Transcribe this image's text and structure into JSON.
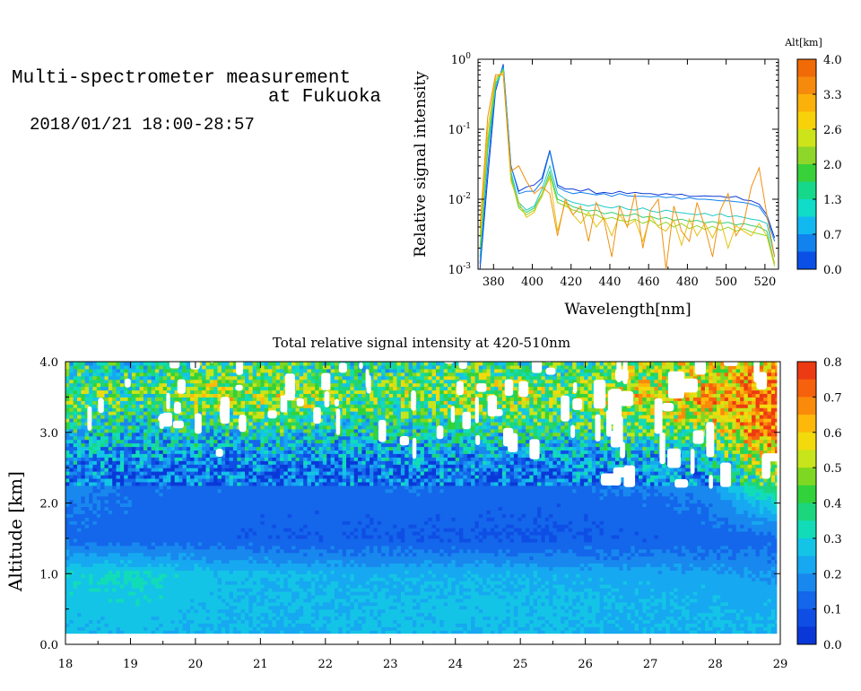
{
  "header": {
    "title_line1": "Multi-spectrometer measurement",
    "title_line2": "at Fukuoka",
    "datetime": "2018/01/21 18:00-28:57"
  },
  "chart_data": [
    {
      "type": "line",
      "xlabel": "Wavelength[nm]",
      "ylabel": "Relative signal intensity",
      "xlim": [
        372,
        527
      ],
      "ylim": [
        0.001,
        1
      ],
      "yscale": "log",
      "x_ticks": [
        "380",
        "400",
        "420",
        "440",
        "460",
        "480",
        "500",
        "520"
      ],
      "y_ticks": [
        "10^0",
        "10^-1",
        "10^-2",
        "10^-3"
      ],
      "x": [
        373,
        377,
        381,
        385,
        389,
        393,
        397,
        401,
        405,
        409,
        413,
        417,
        421,
        425,
        429,
        433,
        437,
        441,
        445,
        449,
        453,
        457,
        461,
        465,
        469,
        473,
        477,
        481,
        485,
        489,
        493,
        497,
        501,
        505,
        509,
        513,
        517,
        521,
        525
      ],
      "series": [
        {
          "color": "#0b3bd6",
          "values": [
            0.001,
            0.02,
            0.35,
            0.85,
            0.03,
            0.013,
            0.015,
            0.016,
            0.02,
            0.05,
            0.016,
            0.014,
            0.014,
            0.013,
            0.014,
            0.012,
            0.0125,
            0.012,
            0.013,
            0.012,
            0.0125,
            0.012,
            0.012,
            0.0115,
            0.012,
            0.0115,
            0.0118,
            0.011,
            0.011,
            0.0112,
            0.011,
            0.011,
            0.0105,
            0.011,
            0.0098,
            0.0095,
            0.0085,
            0.006,
            0.0028
          ]
        },
        {
          "color": "#1080ee",
          "values": [
            0.0012,
            0.03,
            0.4,
            0.8,
            0.03,
            0.012,
            0.013,
            0.013,
            0.018,
            0.048,
            0.015,
            0.013,
            0.012,
            0.0125,
            0.012,
            0.0115,
            0.012,
            0.011,
            0.012,
            0.0112,
            0.011,
            0.011,
            0.0108,
            0.011,
            0.0105,
            0.0108,
            0.01,
            0.0105,
            0.01,
            0.01,
            0.0098,
            0.0095,
            0.0095,
            0.0092,
            0.009,
            0.0085,
            0.0078,
            0.0055,
            0.0025
          ]
        },
        {
          "color": "#22c8c8",
          "values": [
            0.0015,
            0.05,
            0.4,
            0.75,
            0.025,
            0.009,
            0.007,
            0.008,
            0.014,
            0.03,
            0.012,
            0.01,
            0.009,
            0.0085,
            0.008,
            0.0085,
            0.0078,
            0.0075,
            0.008,
            0.0072,
            0.007,
            0.0075,
            0.0068,
            0.0065,
            0.007,
            0.0066,
            0.0064,
            0.0062,
            0.006,
            0.0063,
            0.0058,
            0.0062,
            0.0056,
            0.0058,
            0.0055,
            0.0052,
            0.005,
            0.0045,
            0.0015
          ]
        },
        {
          "color": "#30d070",
          "values": [
            0.002,
            0.06,
            0.45,
            0.7,
            0.022,
            0.008,
            0.0065,
            0.0075,
            0.012,
            0.025,
            0.01,
            0.009,
            0.0078,
            0.0072,
            0.0068,
            0.007,
            0.0062,
            0.0065,
            0.006,
            0.0058,
            0.0062,
            0.0055,
            0.0057,
            0.0052,
            0.0055,
            0.005,
            0.0052,
            0.0048,
            0.005,
            0.0046,
            0.0048,
            0.0045,
            0.0047,
            0.0043,
            0.0045,
            0.0042,
            0.004,
            0.0035,
            0.0012
          ]
        },
        {
          "color": "#8bd820",
          "values": [
            0.002,
            0.07,
            0.5,
            0.7,
            0.02,
            0.0075,
            0.006,
            0.007,
            0.011,
            0.022,
            0.009,
            0.008,
            0.007,
            0.0065,
            0.0058,
            0.006,
            0.0052,
            0.0055,
            0.005,
            0.0048,
            0.0052,
            0.0045,
            0.005,
            0.0042,
            0.0047,
            0.004,
            0.0045,
            0.0038,
            0.0042,
            0.0037,
            0.0041,
            0.0036,
            0.004,
            0.0035,
            0.0038,
            0.0034,
            0.0032,
            0.003,
            0.0011
          ]
        },
        {
          "color": "#e8c010",
          "values": [
            0.003,
            0.1,
            0.55,
            0.65,
            0.018,
            0.009,
            0.0055,
            0.0065,
            0.012,
            0.02,
            0.0035,
            0.009,
            0.006,
            0.0045,
            0.0065,
            0.004,
            0.0055,
            0.003,
            0.006,
            0.0042,
            0.005,
            0.0025,
            0.0058,
            0.004,
            0.0035,
            0.005,
            0.0022,
            0.0052,
            0.003,
            0.0045,
            0.0028,
            0.005,
            0.002,
            0.0042,
            0.0035,
            0.003,
            0.0045,
            0.003,
            0.0012
          ]
        },
        {
          "color": "#f09010",
          "values": [
            0.004,
            0.15,
            0.6,
            0.6,
            0.025,
            0.03,
            0.018,
            0.012,
            0.015,
            0.012,
            0.003,
            0.01,
            0.006,
            0.008,
            0.0025,
            0.009,
            0.005,
            0.0015,
            0.008,
            0.004,
            0.012,
            0.002,
            0.007,
            0.01,
            0.001,
            0.008,
            0.0035,
            0.0025,
            0.009,
            0.004,
            0.0015,
            0.007,
            0.012,
            0.003,
            0.0045,
            0.015,
            0.028,
            0.006,
            0.0015
          ]
        }
      ]
    },
    {
      "type": "heatmap",
      "title": "Total relative signal intensity at 420-510nm",
      "ylabel": "Altitude [km]",
      "xlim": [
        18,
        29
      ],
      "ylim": [
        0.0,
        4.0
      ],
      "x_ticks": [
        "18",
        "19",
        "20",
        "21",
        "22",
        "23",
        "24",
        "25",
        "26",
        "27",
        "28",
        "29"
      ],
      "y_ticks": [
        "0.0",
        "1.0",
        "2.0",
        "3.0",
        "4.0"
      ],
      "time_range": [
        18.0,
        28.95
      ],
      "altitude_range": [
        0.15,
        4.0
      ],
      "color_range": [
        0.0,
        0.8
      ],
      "rows": [
        {
          "alt": 0.15,
          "v": [
            0.25,
            0.26,
            0.25,
            0.24,
            0.25,
            0.26,
            0.25,
            0.25,
            0.24,
            0.25,
            0.25
          ]
        },
        {
          "alt": 0.5,
          "v": [
            0.27,
            0.28,
            0.26,
            0.25,
            0.26,
            0.26,
            0.27,
            0.26,
            0.25,
            0.25,
            0.24
          ]
        },
        {
          "alt": 1.0,
          "v": [
            0.3,
            0.31,
            0.27,
            0.25,
            0.24,
            0.24,
            0.25,
            0.24,
            0.23,
            0.22,
            0.2
          ]
        },
        {
          "alt": 1.2,
          "v": [
            0.22,
            0.23,
            0.2,
            0.19,
            0.18,
            0.18,
            0.18,
            0.17,
            0.17,
            0.17,
            0.16
          ]
        },
        {
          "alt": 1.5,
          "v": [
            0.13,
            0.12,
            0.12,
            0.11,
            0.11,
            0.1,
            0.1,
            0.1,
            0.11,
            0.12,
            0.13
          ]
        },
        {
          "alt": 2.0,
          "v": [
            0.16,
            0.13,
            0.13,
            0.12,
            0.12,
            0.13,
            0.12,
            0.12,
            0.13,
            0.15,
            0.3
          ]
        },
        {
          "alt": 2.5,
          "v": [
            0.2,
            0.14,
            0.14,
            0.13,
            0.14,
            0.16,
            0.14,
            0.15,
            0.18,
            0.2,
            0.55
          ]
        },
        {
          "alt": 3.0,
          "v": [
            0.32,
            0.26,
            0.3,
            0.34,
            0.28,
            0.3,
            0.33,
            0.32,
            0.38,
            0.45,
            0.7
          ]
        },
        {
          "alt": 3.5,
          "v": [
            0.45,
            0.4,
            0.48,
            0.5,
            0.42,
            0.47,
            0.5,
            0.45,
            0.55,
            0.62,
            0.72
          ]
        },
        {
          "alt": 4.0,
          "v": [
            0.35,
            0.3,
            0.4,
            0.38,
            0.32,
            0.36,
            0.4,
            0.34,
            0.45,
            0.5,
            0.6
          ]
        }
      ]
    }
  ],
  "legend_altitude": {
    "title": "Alt[km]",
    "ticks": [
      "4.0",
      "3.3",
      "2.6",
      "2.0",
      "1.3",
      "0.7",
      "0.0"
    ],
    "colors": [
      "#f06a06",
      "#f68a0c",
      "#fbb10a",
      "#f7d10a",
      "#cde41a",
      "#8fd62a",
      "#38d13a",
      "#16d88a",
      "#10dcc8",
      "#12b8f0",
      "#1282ee",
      "#0a4fe6"
    ]
  },
  "legend_intensity": {
    "ticks": [
      "0.8",
      "0.7",
      "0.6",
      "0.5",
      "0.4",
      "0.3",
      "0.2",
      "0.1",
      "0.0"
    ],
    "colors": [
      "#ec3a12",
      "#f5610c",
      "#fa8a0a",
      "#fdb80a",
      "#f2da0c",
      "#c8e41a",
      "#7ed822",
      "#32d23a",
      "#1cd67e",
      "#12dcb8",
      "#14c4e6",
      "#16a8f0",
      "#1888ee",
      "#1466ea",
      "#0f4ee4",
      "#0a38d8"
    ]
  }
}
